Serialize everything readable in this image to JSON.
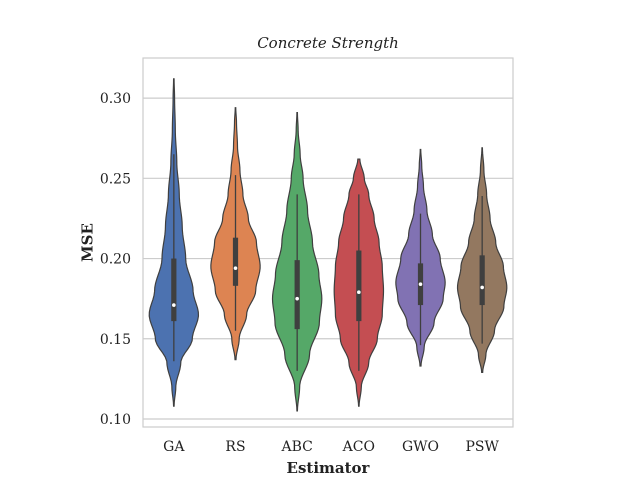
{
  "chart_data": {
    "type": "violin",
    "title": "Concrete Strength",
    "xlabel": "Estimator",
    "ylabel": "MSE",
    "ylim": [
      0.095,
      0.325
    ],
    "yticks": [
      0.1,
      0.15,
      0.2,
      0.25,
      0.3
    ],
    "ytick_labels": [
      "0.10",
      "0.15",
      "0.20",
      "0.25",
      "0.30"
    ],
    "grid": true,
    "categories": [
      "GA",
      "RS",
      "ABC",
      "ACO",
      "GWO",
      "PSW"
    ],
    "series": [
      {
        "color": "#4c72b0",
        "min": 0.108,
        "max": 0.312,
        "q1": 0.161,
        "median": 0.171,
        "q3": 0.2,
        "whisker_low": 0.136,
        "whisker_high": 0.265,
        "profile": [
          [
            0.108,
            0.01
          ],
          [
            0.12,
            0.08
          ],
          [
            0.135,
            0.28
          ],
          [
            0.15,
            0.75
          ],
          [
            0.165,
            1.0
          ],
          [
            0.18,
            0.78
          ],
          [
            0.2,
            0.48
          ],
          [
            0.22,
            0.34
          ],
          [
            0.24,
            0.22
          ],
          [
            0.26,
            0.12
          ],
          [
            0.28,
            0.06
          ],
          [
            0.3,
            0.03
          ],
          [
            0.312,
            0.01
          ]
        ]
      },
      {
        "color": "#dd8452",
        "min": 0.137,
        "max": 0.294,
        "q1": 0.183,
        "median": 0.194,
        "q3": 0.213,
        "whisker_low": 0.155,
        "whisker_high": 0.252,
        "profile": [
          [
            0.137,
            0.02
          ],
          [
            0.15,
            0.15
          ],
          [
            0.165,
            0.45
          ],
          [
            0.18,
            0.82
          ],
          [
            0.195,
            1.0
          ],
          [
            0.21,
            0.85
          ],
          [
            0.225,
            0.52
          ],
          [
            0.24,
            0.3
          ],
          [
            0.255,
            0.18
          ],
          [
            0.27,
            0.08
          ],
          [
            0.285,
            0.04
          ],
          [
            0.294,
            0.01
          ]
        ]
      },
      {
        "color": "#55a868",
        "min": 0.105,
        "max": 0.291,
        "q1": 0.156,
        "median": 0.175,
        "q3": 0.199,
        "whisker_low": 0.13,
        "whisker_high": 0.24,
        "profile": [
          [
            0.105,
            0.01
          ],
          [
            0.12,
            0.1
          ],
          [
            0.14,
            0.5
          ],
          [
            0.16,
            0.9
          ],
          [
            0.175,
            1.0
          ],
          [
            0.19,
            0.88
          ],
          [
            0.21,
            0.62
          ],
          [
            0.23,
            0.42
          ],
          [
            0.25,
            0.24
          ],
          [
            0.265,
            0.12
          ],
          [
            0.28,
            0.04
          ],
          [
            0.291,
            0.01
          ]
        ]
      },
      {
        "color": "#c44e52",
        "min": 0.108,
        "max": 0.262,
        "q1": 0.161,
        "median": 0.179,
        "q3": 0.205,
        "whisker_low": 0.13,
        "whisker_high": 0.24,
        "profile": [
          [
            0.108,
            0.01
          ],
          [
            0.12,
            0.1
          ],
          [
            0.135,
            0.4
          ],
          [
            0.15,
            0.75
          ],
          [
            0.165,
            0.95
          ],
          [
            0.18,
            1.0
          ],
          [
            0.195,
            0.95
          ],
          [
            0.21,
            0.82
          ],
          [
            0.225,
            0.62
          ],
          [
            0.24,
            0.4
          ],
          [
            0.25,
            0.22
          ],
          [
            0.262,
            0.04
          ]
        ]
      },
      {
        "color": "#8172b3",
        "min": 0.133,
        "max": 0.268,
        "q1": 0.171,
        "median": 0.184,
        "q3": 0.197,
        "whisker_low": 0.146,
        "whisker_high": 0.228,
        "profile": [
          [
            0.133,
            0.02
          ],
          [
            0.145,
            0.15
          ],
          [
            0.16,
            0.55
          ],
          [
            0.175,
            0.92
          ],
          [
            0.185,
            1.0
          ],
          [
            0.2,
            0.8
          ],
          [
            0.215,
            0.48
          ],
          [
            0.23,
            0.26
          ],
          [
            0.245,
            0.12
          ],
          [
            0.258,
            0.05
          ],
          [
            0.268,
            0.01
          ]
        ]
      },
      {
        "color": "#937860",
        "min": 0.129,
        "max": 0.269,
        "q1": 0.171,
        "median": 0.182,
        "q3": 0.202,
        "whisker_low": 0.147,
        "whisker_high": 0.239,
        "profile": [
          [
            0.129,
            0.02
          ],
          [
            0.14,
            0.15
          ],
          [
            0.155,
            0.5
          ],
          [
            0.17,
            0.88
          ],
          [
            0.182,
            1.0
          ],
          [
            0.195,
            0.86
          ],
          [
            0.21,
            0.55
          ],
          [
            0.225,
            0.32
          ],
          [
            0.24,
            0.18
          ],
          [
            0.255,
            0.07
          ],
          [
            0.269,
            0.01
          ]
        ]
      }
    ]
  }
}
